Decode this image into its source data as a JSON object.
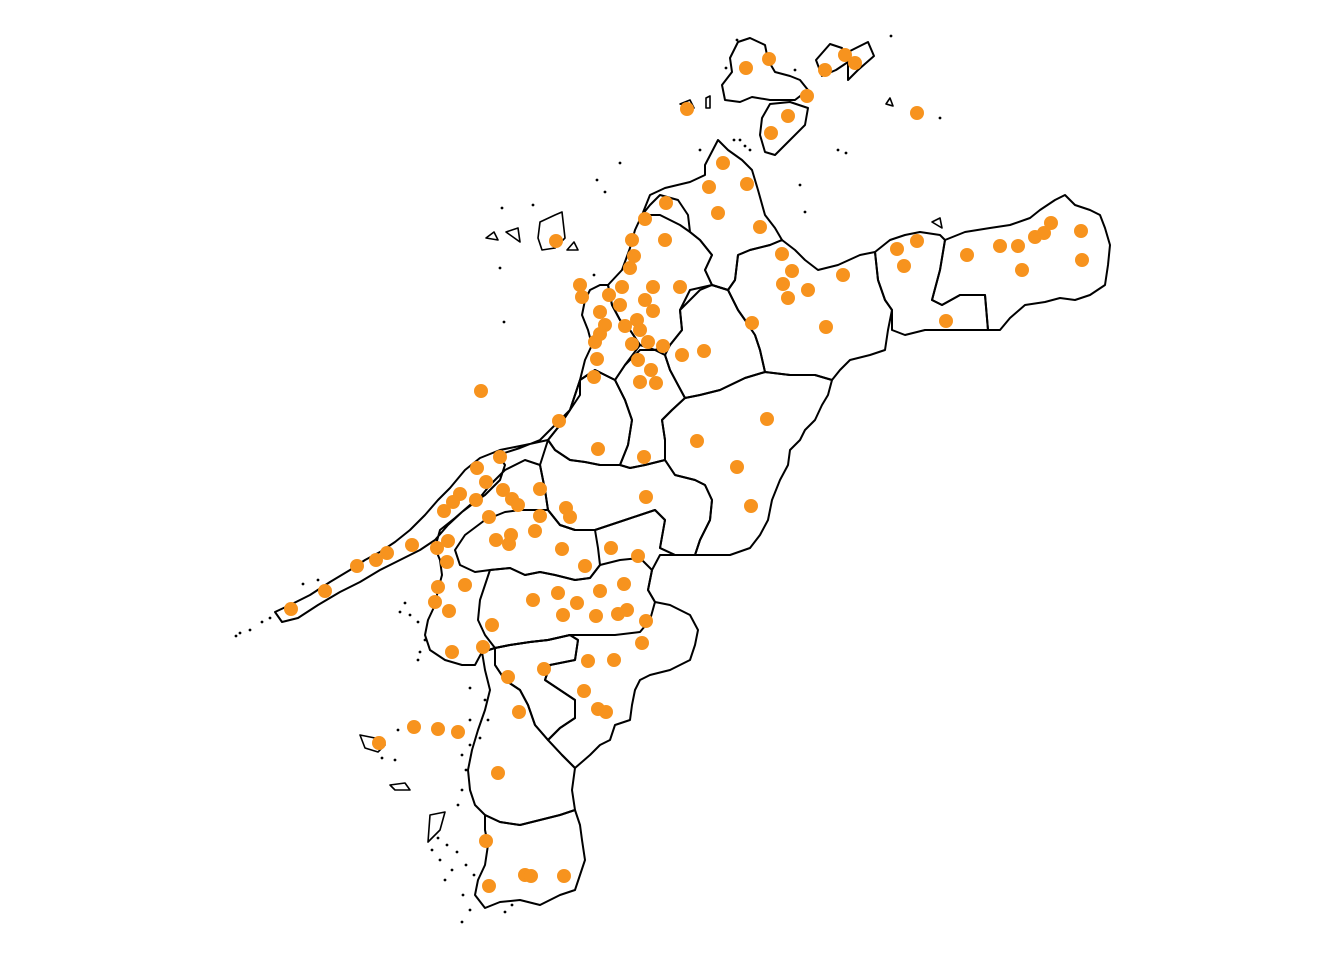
{
  "map": {
    "marker_color": "#f7931e",
    "boundary_color": "#000000",
    "background_color": "#ffffff",
    "marker_count": 130
  }
}
